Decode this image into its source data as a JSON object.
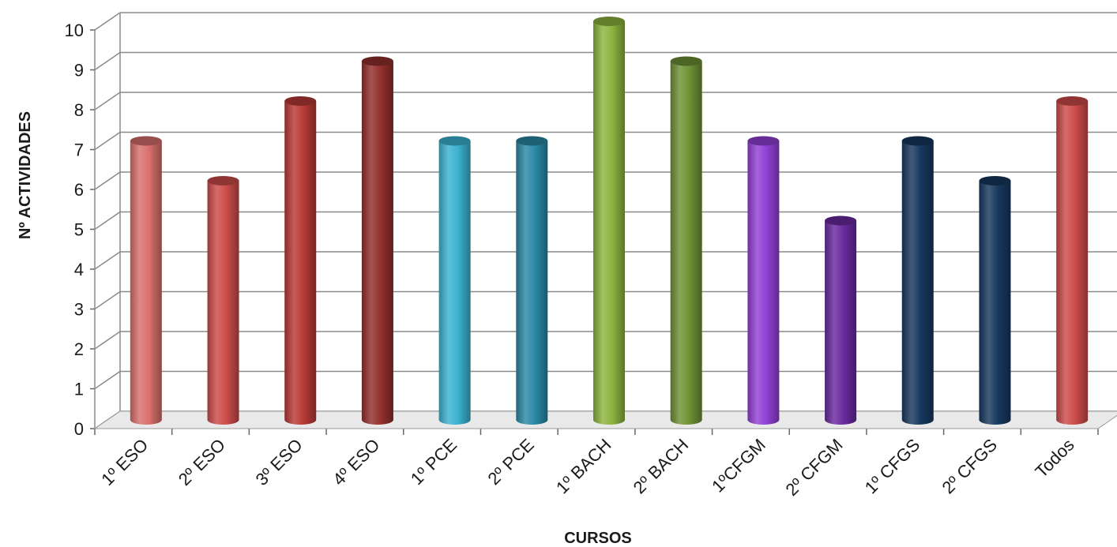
{
  "chart_data": {
    "type": "bar",
    "categories": [
      "1º ESO",
      "2º ESO",
      "3º ESO",
      "4º ESO",
      "1º PCE",
      "2º PCE",
      "1º BACH",
      "2º BACH",
      "1ºCFGM",
      "2º CFGM",
      "1º CFGS",
      "2º CFGS",
      "Todos"
    ],
    "values": [
      7,
      6,
      8,
      9,
      7,
      7,
      10,
      9,
      7,
      5,
      7,
      6,
      8
    ],
    "colors": [
      "#d9706c",
      "#cc4c4a",
      "#b83a36",
      "#93302d",
      "#3cb2d0",
      "#2a89a6",
      "#8db43f",
      "#6f9235",
      "#9240d6",
      "#6a2aa0",
      "#17385e",
      "#17385e",
      "#cc4c4a"
    ],
    "xlabel": "CURSOS",
    "ylabel": "Nº ACTIVIDADES",
    "ylim": [
      0,
      10
    ],
    "yticks": [
      "0",
      "1",
      "2",
      "3",
      "4",
      "5",
      "6",
      "7",
      "8",
      "9",
      "10"
    ],
    "grid": true,
    "style": "3d-cylinder"
  }
}
